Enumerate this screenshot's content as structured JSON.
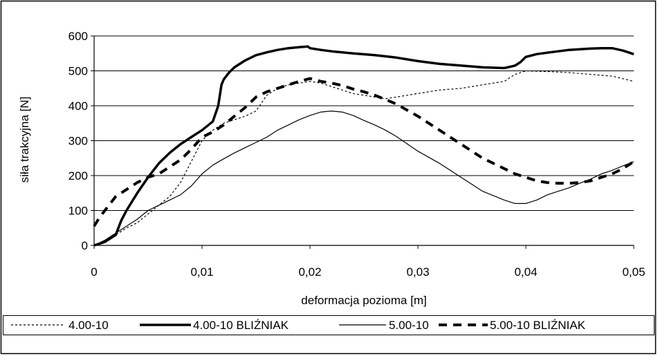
{
  "chart_data": {
    "type": "line",
    "xlabel": "deformacja pozioma [m]",
    "ylabel": "siła trakcyjna [N]",
    "xlim": [
      0,
      0.05
    ],
    "ylim": [
      0,
      600
    ],
    "x_ticks": [
      "0",
      "0,01",
      "0,02",
      "0,03",
      "0,04",
      "0,05"
    ],
    "y_ticks": [
      "0",
      "100",
      "200",
      "300",
      "400",
      "500",
      "600"
    ],
    "grid": "horizontal",
    "legend": "bottom",
    "series": [
      {
        "name": "4.00-10",
        "style": "dotted-thin",
        "points": [
          [
            0,
            0
          ],
          [
            0.001,
            10
          ],
          [
            0.002,
            30
          ],
          [
            0.003,
            50
          ],
          [
            0.004,
            65
          ],
          [
            0.005,
            90
          ],
          [
            0.006,
            115
          ],
          [
            0.007,
            140
          ],
          [
            0.008,
            180
          ],
          [
            0.009,
            240
          ],
          [
            0.01,
            300
          ],
          [
            0.011,
            330
          ],
          [
            0.012,
            350
          ],
          [
            0.013,
            360
          ],
          [
            0.014,
            370
          ],
          [
            0.015,
            385
          ],
          [
            0.016,
            430
          ],
          [
            0.017,
            450
          ],
          [
            0.018,
            460
          ],
          [
            0.019,
            465
          ],
          [
            0.02,
            470
          ],
          [
            0.021,
            465
          ],
          [
            0.022,
            455
          ],
          [
            0.023,
            445
          ],
          [
            0.024,
            435
          ],
          [
            0.025,
            430
          ],
          [
            0.026,
            425
          ],
          [
            0.027,
            420
          ],
          [
            0.028,
            425
          ],
          [
            0.029,
            430
          ],
          [
            0.03,
            435
          ],
          [
            0.032,
            445
          ],
          [
            0.034,
            450
          ],
          [
            0.036,
            460
          ],
          [
            0.038,
            470
          ],
          [
            0.039,
            490
          ],
          [
            0.04,
            500
          ],
          [
            0.042,
            498
          ],
          [
            0.044,
            495
          ],
          [
            0.046,
            490
          ],
          [
            0.048,
            485
          ],
          [
            0.05,
            470
          ]
        ]
      },
      {
        "name": "4.00-10 BLIŹNIAK",
        "style": "solid-thick",
        "points": [
          [
            0,
            0
          ],
          [
            0.001,
            10
          ],
          [
            0.002,
            30
          ],
          [
            0.0025,
            70
          ],
          [
            0.003,
            100
          ],
          [
            0.004,
            150
          ],
          [
            0.005,
            195
          ],
          [
            0.006,
            235
          ],
          [
            0.007,
            265
          ],
          [
            0.008,
            290
          ],
          [
            0.009,
            310
          ],
          [
            0.01,
            330
          ],
          [
            0.011,
            355
          ],
          [
            0.0115,
            400
          ],
          [
            0.0118,
            460
          ],
          [
            0.012,
            475
          ],
          [
            0.0125,
            495
          ],
          [
            0.013,
            510
          ],
          [
            0.014,
            530
          ],
          [
            0.015,
            545
          ],
          [
            0.016,
            553
          ],
          [
            0.017,
            560
          ],
          [
            0.018,
            565
          ],
          [
            0.019,
            568
          ],
          [
            0.0198,
            570
          ],
          [
            0.02,
            565
          ],
          [
            0.021,
            560
          ],
          [
            0.022,
            556
          ],
          [
            0.024,
            550
          ],
          [
            0.026,
            545
          ],
          [
            0.028,
            538
          ],
          [
            0.03,
            528
          ],
          [
            0.032,
            520
          ],
          [
            0.034,
            515
          ],
          [
            0.036,
            510
          ],
          [
            0.038,
            508
          ],
          [
            0.039,
            515
          ],
          [
            0.0395,
            525
          ],
          [
            0.04,
            540
          ],
          [
            0.041,
            548
          ],
          [
            0.042,
            552
          ],
          [
            0.043,
            556
          ],
          [
            0.044,
            560
          ],
          [
            0.045,
            562
          ],
          [
            0.046,
            564
          ],
          [
            0.047,
            565
          ],
          [
            0.048,
            565
          ],
          [
            0.049,
            558
          ],
          [
            0.05,
            548
          ]
        ]
      },
      {
        "name": "5.00-10",
        "style": "solid-thin",
        "points": [
          [
            0,
            0
          ],
          [
            0.001,
            15
          ],
          [
            0.002,
            35
          ],
          [
            0.003,
            55
          ],
          [
            0.004,
            75
          ],
          [
            0.005,
            100
          ],
          [
            0.006,
            115
          ],
          [
            0.007,
            130
          ],
          [
            0.008,
            145
          ],
          [
            0.009,
            170
          ],
          [
            0.01,
            205
          ],
          [
            0.011,
            230
          ],
          [
            0.012,
            248
          ],
          [
            0.013,
            265
          ],
          [
            0.014,
            280
          ],
          [
            0.015,
            295
          ],
          [
            0.016,
            310
          ],
          [
            0.017,
            330
          ],
          [
            0.018,
            345
          ],
          [
            0.019,
            360
          ],
          [
            0.02,
            372
          ],
          [
            0.021,
            382
          ],
          [
            0.022,
            385
          ],
          [
            0.023,
            382
          ],
          [
            0.024,
            372
          ],
          [
            0.025,
            358
          ],
          [
            0.026,
            345
          ],
          [
            0.027,
            330
          ],
          [
            0.028,
            312
          ],
          [
            0.03,
            270
          ],
          [
            0.032,
            235
          ],
          [
            0.034,
            195
          ],
          [
            0.036,
            155
          ],
          [
            0.038,
            130
          ],
          [
            0.039,
            120
          ],
          [
            0.04,
            120
          ],
          [
            0.041,
            130
          ],
          [
            0.042,
            145
          ],
          [
            0.043,
            155
          ],
          [
            0.044,
            165
          ],
          [
            0.045,
            178
          ],
          [
            0.046,
            190
          ],
          [
            0.047,
            205
          ],
          [
            0.048,
            215
          ],
          [
            0.049,
            228
          ],
          [
            0.05,
            240
          ]
        ]
      },
      {
        "name": "5.00-10 BLIŹNIAK",
        "style": "dashed-thick",
        "points": [
          [
            0,
            55
          ],
          [
            0.0005,
            80
          ],
          [
            0.001,
            100
          ],
          [
            0.002,
            140
          ],
          [
            0.003,
            160
          ],
          [
            0.004,
            180
          ],
          [
            0.005,
            195
          ],
          [
            0.006,
            205
          ],
          [
            0.007,
            225
          ],
          [
            0.008,
            245
          ],
          [
            0.009,
            275
          ],
          [
            0.01,
            310
          ],
          [
            0.011,
            325
          ],
          [
            0.012,
            345
          ],
          [
            0.013,
            370
          ],
          [
            0.014,
            395
          ],
          [
            0.015,
            425
          ],
          [
            0.016,
            440
          ],
          [
            0.017,
            450
          ],
          [
            0.018,
            460
          ],
          [
            0.019,
            470
          ],
          [
            0.02,
            478
          ],
          [
            0.021,
            470
          ],
          [
            0.022,
            465
          ],
          [
            0.023,
            458
          ],
          [
            0.024,
            448
          ],
          [
            0.025,
            440
          ],
          [
            0.026,
            430
          ],
          [
            0.027,
            418
          ],
          [
            0.028,
            405
          ],
          [
            0.03,
            370
          ],
          [
            0.032,
            330
          ],
          [
            0.034,
            290
          ],
          [
            0.036,
            250
          ],
          [
            0.038,
            220
          ],
          [
            0.039,
            205
          ],
          [
            0.04,
            195
          ],
          [
            0.041,
            185
          ],
          [
            0.042,
            180
          ],
          [
            0.043,
            178
          ],
          [
            0.044,
            178
          ],
          [
            0.045,
            180
          ],
          [
            0.046,
            185
          ],
          [
            0.047,
            195
          ],
          [
            0.048,
            205
          ],
          [
            0.049,
            220
          ],
          [
            0.05,
            240
          ]
        ]
      }
    ]
  }
}
